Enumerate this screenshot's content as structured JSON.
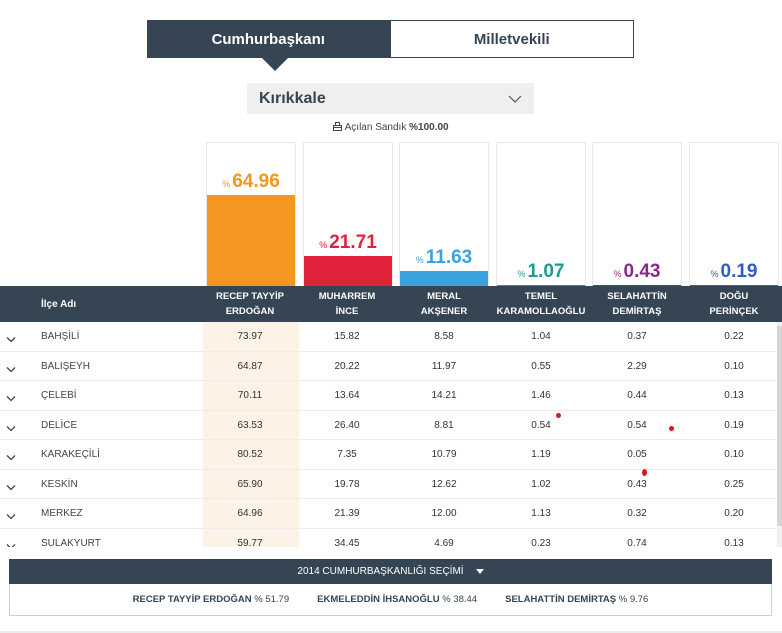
{
  "tabs": [
    {
      "label": "Cumhurbaşkanı",
      "active": true
    },
    {
      "label": "Milletvekili",
      "active": false
    }
  ],
  "city_select": {
    "value": "Kırıkkale",
    "icon": "chevron-down-icon"
  },
  "opened_ballots": {
    "icon": "ballot-box-icon",
    "label": "Açılan Sandık",
    "value": "%100.00"
  },
  "candidates": [
    {
      "short": "RECEP TAYYİP ERDOĞAN",
      "line1": "RECEP TAYYİP",
      "line2": "ERDOĞAN",
      "percent": 64.96,
      "percent_text": "64.96",
      "color": "#f4961f"
    },
    {
      "short": "MUHARREM İNCE",
      "line1": "MUHARREM",
      "line2": "İNCE",
      "percent": 21.71,
      "percent_text": "21.71",
      "color": "#e0223a"
    },
    {
      "short": "MERAL AKŞENER",
      "line1": "MERAL",
      "line2": "AKŞENER",
      "percent": 11.63,
      "percent_text": "11.63",
      "color": "#3aa2e0"
    },
    {
      "short": "TEMEL KARAMOLLAOĞLU",
      "line1": "TEMEL",
      "line2": "KARAMOLLAOĞLU",
      "percent": 1.07,
      "percent_text": "1.07",
      "color": "#1f9a8e"
    },
    {
      "short": "SELAHATTİN DEMİRTAŞ",
      "line1": "SELAHATTİN",
      "line2": "DEMİRTAŞ",
      "percent": 0.43,
      "percent_text": "0.43",
      "color": "#8b2a86"
    },
    {
      "short": "DOĞU PERİNÇEK",
      "line1": "DOĞU",
      "line2": "PERİNÇEK",
      "percent": 0.19,
      "percent_text": "0.19",
      "color": "#2f5cc8"
    }
  ],
  "percent_symbol": "%",
  "table": {
    "district_header": "İlçe Adı",
    "rows": [
      {
        "name": "BAHŞİLİ",
        "values": [
          "73.97",
          "15.82",
          "8.58",
          "1.04",
          "0.37",
          "0.22"
        ]
      },
      {
        "name": "BALIŞEYH",
        "values": [
          "64.87",
          "20.22",
          "11.97",
          "0.55",
          "2.29",
          "0.10"
        ]
      },
      {
        "name": "ÇELEBİ",
        "values": [
          "70.11",
          "13.64",
          "14.21",
          "1.46",
          "0.44",
          "0.13"
        ]
      },
      {
        "name": "DELİCE",
        "values": [
          "63.53",
          "26.40",
          "8.81",
          "0.54",
          "0.54",
          "0.19"
        ]
      },
      {
        "name": "KARAKEÇİLİ",
        "values": [
          "80.52",
          "7.35",
          "10.79",
          "1.19",
          "0.05",
          "0.10"
        ]
      },
      {
        "name": "KESKİN",
        "values": [
          "65.90",
          "19.78",
          "12.62",
          "1.02",
          "0.43",
          "0.25"
        ]
      },
      {
        "name": "MERKEZ",
        "values": [
          "64.96",
          "21.39",
          "12.00",
          "1.13",
          "0.32",
          "0.20"
        ]
      },
      {
        "name": "SULAKYURT",
        "values": [
          "59.77",
          "34.45",
          "4.69",
          "0.23",
          "0.74",
          "0.13"
        ]
      }
    ]
  },
  "previous_election": {
    "title": "2014 CUMHURBAŞKANLIĞI SEÇİMİ",
    "results": [
      {
        "name": "RECEP TAYYİP ERDOĞAN",
        "value": "% 51.79"
      },
      {
        "name": "EKMELEDDİN İHSANOĞLU",
        "value": "% 38.44"
      },
      {
        "name": "SELAHATTİN DEMİRTAŞ",
        "value": "% 9.76"
      }
    ]
  }
}
